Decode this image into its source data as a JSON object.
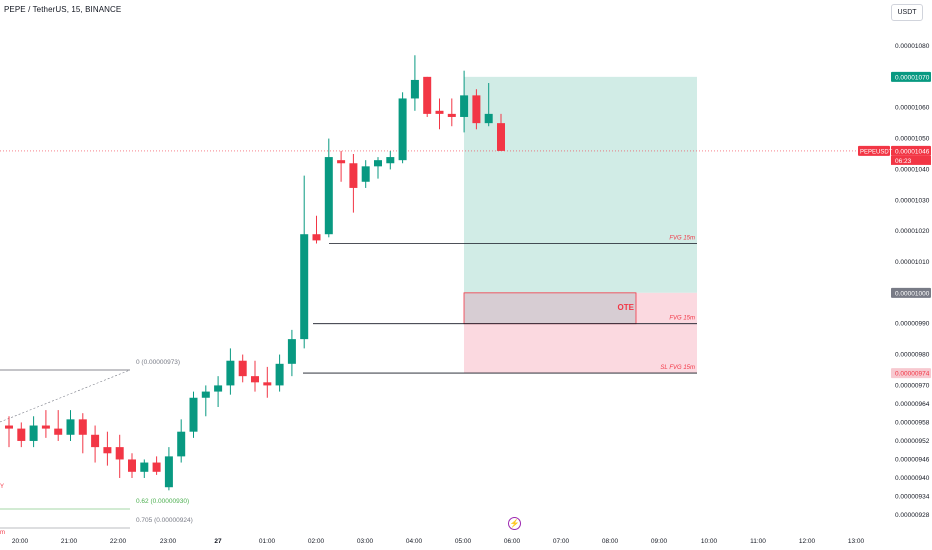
{
  "header": {
    "title": "PEPE / TetherUS, 15, BINANCE",
    "currency_button": "USDT"
  },
  "price_axis": {
    "ticks": [
      "0.00001080",
      "0.00001070",
      "0.00001060",
      "0.00001050",
      "0.00001040",
      "0.00001030",
      "0.00001020",
      "0.00001010",
      "0.00001000",
      "0.00000990",
      "0.00000980",
      "0.00000974",
      "0.00000970",
      "0.00000964",
      "0.00000958",
      "0.00000952",
      "0.00000946",
      "0.00000940",
      "0.00000934",
      "0.00000928"
    ],
    "labels": [
      {
        "text": "0.00001070",
        "value": 1.07e-05,
        "color": "#089981",
        "text_color": "#ffffff"
      },
      {
        "text": "0.00001046",
        "value": 1.046e-05,
        "color": "#f23645",
        "text_color": "#ffffff",
        "symbol": "PEPEUSDT",
        "countdown": "06:23"
      },
      {
        "text": "0.00001000",
        "value": 1e-05,
        "color": "#787b86",
        "text_color": "#ffffff"
      },
      {
        "text": "0.00000974",
        "value": 9.74e-06,
        "color": "#f7c9d0",
        "text_color": "#f23645"
      }
    ]
  },
  "time_axis": {
    "ticks": [
      "20:00",
      "21:00",
      "22:00",
      "23:00",
      "27",
      "01:00",
      "02:00",
      "03:00",
      "04:00",
      "05:00",
      "06:00",
      "07:00",
      "08:00",
      "09:00",
      "10:00",
      "11:00",
      "12:00",
      "13:00"
    ]
  },
  "annotations": {
    "fvg_top": "FVG 15m",
    "fvg_mid": "FVG 15m",
    "sl": "SL FVG 15m",
    "ote": "OTE",
    "fib_0": "0 (0.00000973)",
    "fib_062": "0.62 (0.00000930)",
    "fib_0705": "0.705 (0.00000924)",
    "partial_y": "Y",
    "partial_m": "m"
  },
  "colors": {
    "up": "#089981",
    "down": "#f23645",
    "profit_zone": "#d1ece6",
    "loss_zone": "#fbd9e0",
    "ote_box": "#d7cdd3"
  },
  "chart_data": {
    "type": "candlestick",
    "symbol": "PEPEUSDT",
    "interval": "15",
    "exchange": "BINANCE",
    "candles": [
      {
        "o": 9.57e-06,
        "h": 9.6e-06,
        "l": 9.5e-06,
        "c": 9.56e-06
      },
      {
        "o": 9.56e-06,
        "h": 9.58e-06,
        "l": 9.5e-06,
        "c": 9.52e-06
      },
      {
        "o": 9.52e-06,
        "h": 9.6e-06,
        "l": 9.5e-06,
        "c": 9.57e-06
      },
      {
        "o": 9.57e-06,
        "h": 9.62e-06,
        "l": 9.53e-06,
        "c": 9.56e-06
      },
      {
        "o": 9.56e-06,
        "h": 9.62e-06,
        "l": 9.52e-06,
        "c": 9.54e-06
      },
      {
        "o": 9.54e-06,
        "h": 9.62e-06,
        "l": 9.52e-06,
        "c": 9.59e-06
      },
      {
        "o": 9.59e-06,
        "h": 9.61e-06,
        "l": 9.48e-06,
        "c": 9.54e-06
      },
      {
        "o": 9.54e-06,
        "h": 9.57e-06,
        "l": 9.45e-06,
        "c": 9.5e-06
      },
      {
        "o": 9.5e-06,
        "h": 9.55e-06,
        "l": 9.44e-06,
        "c": 9.48e-06
      },
      {
        "o": 9.5e-06,
        "h": 9.54e-06,
        "l": 9.4e-06,
        "c": 9.46e-06
      },
      {
        "o": 9.46e-06,
        "h": 9.48e-06,
        "l": 9.4e-06,
        "c": 9.42e-06
      },
      {
        "o": 9.42e-06,
        "h": 9.46e-06,
        "l": 9.4e-06,
        "c": 9.45e-06
      },
      {
        "o": 9.45e-06,
        "h": 9.47e-06,
        "l": 9.41e-06,
        "c": 9.42e-06
      },
      {
        "o": 9.37e-06,
        "h": 9.5e-06,
        "l": 9.36e-06,
        "c": 9.47e-06
      },
      {
        "o": 9.47e-06,
        "h": 9.59e-06,
        "l": 9.45e-06,
        "c": 9.55e-06
      },
      {
        "o": 9.55e-06,
        "h": 9.68e-06,
        "l": 9.53e-06,
        "c": 9.66e-06
      },
      {
        "o": 9.66e-06,
        "h": 9.7e-06,
        "l": 9.6e-06,
        "c": 9.68e-06
      },
      {
        "o": 9.68e-06,
        "h": 9.73e-06,
        "l": 9.63e-06,
        "c": 9.7e-06
      },
      {
        "o": 9.7e-06,
        "h": 9.82e-06,
        "l": 9.67e-06,
        "c": 9.78e-06
      },
      {
        "o": 9.78e-06,
        "h": 9.8e-06,
        "l": 9.71e-06,
        "c": 9.73e-06
      },
      {
        "o": 9.73e-06,
        "h": 9.78e-06,
        "l": 9.68e-06,
        "c": 9.71e-06
      },
      {
        "o": 9.71e-06,
        "h": 9.76e-06,
        "l": 9.66e-06,
        "c": 9.7e-06
      },
      {
        "o": 9.7e-06,
        "h": 9.8e-06,
        "l": 9.68e-06,
        "c": 9.77e-06
      },
      {
        "o": 9.77e-06,
        "h": 9.88e-06,
        "l": 9.73e-06,
        "c": 9.85e-06
      },
      {
        "o": 9.85e-06,
        "h": 1.038e-05,
        "l": 9.82e-06,
        "c": 1.019e-05
      },
      {
        "o": 1.019e-05,
        "h": 1.025e-05,
        "l": 1.016e-05,
        "c": 1.017e-05
      },
      {
        "o": 1.019e-05,
        "h": 1.05e-05,
        "l": 1.018e-05,
        "c": 1.044e-05
      },
      {
        "o": 1.043e-05,
        "h": 1.046e-05,
        "l": 1.036e-05,
        "c": 1.042e-05
      },
      {
        "o": 1.042e-05,
        "h": 1.045e-05,
        "l": 1.026e-05,
        "c": 1.034e-05
      },
      {
        "o": 1.036e-05,
        "h": 1.043e-05,
        "l": 1.034e-05,
        "c": 1.041e-05
      },
      {
        "o": 1.041e-05,
        "h": 1.044e-05,
        "l": 1.037e-05,
        "c": 1.043e-05
      },
      {
        "o": 1.042e-05,
        "h": 1.046e-05,
        "l": 1.04e-05,
        "c": 1.044e-05
      },
      {
        "o": 1.043e-05,
        "h": 1.065e-05,
        "l": 1.042e-05,
        "c": 1.063e-05
      },
      {
        "o": 1.063e-05,
        "h": 1.077e-05,
        "l": 1.059e-05,
        "c": 1.069e-05
      },
      {
        "o": 1.07e-05,
        "h": 1.07e-05,
        "l": 1.057e-05,
        "c": 1.058e-05
      },
      {
        "o": 1.059e-05,
        "h": 1.063e-05,
        "l": 1.053e-05,
        "c": 1.058e-05
      },
      {
        "o": 1.058e-05,
        "h": 1.063e-05,
        "l": 1.054e-05,
        "c": 1.057e-05
      },
      {
        "o": 1.057e-05,
        "h": 1.072e-05,
        "l": 1.052e-05,
        "c": 1.064e-05
      },
      {
        "o": 1.064e-05,
        "h": 1.066e-05,
        "l": 1.053e-05,
        "c": 1.055e-05
      },
      {
        "o": 1.055e-05,
        "h": 1.068e-05,
        "l": 1.054e-05,
        "c": 1.058e-05
      },
      {
        "o": 1.055e-05,
        "h": 1.058e-05,
        "l": 1.046e-05,
        "c": 1.046e-05
      }
    ],
    "levels": [
      {
        "name": "FVG 15m",
        "price": 1.016e-05
      },
      {
        "name": "FVG 15m",
        "price": 9.9e-06
      },
      {
        "name": "SL FVG 15m",
        "price": 9.74e-06
      }
    ],
    "position": {
      "entry": 1e-05,
      "target": 1.07e-05,
      "stop": 9.74e-06
    },
    "ote_zone": {
      "top": 1e-05,
      "bottom": 9.9e-06
    },
    "fib_levels": [
      {
        "level": "0",
        "price": 9.73e-06
      },
      {
        "level": "0.62",
        "price": 9.3e-06
      },
      {
        "level": "0.705",
        "price": 9.24e-06
      }
    ],
    "grid": false
  }
}
